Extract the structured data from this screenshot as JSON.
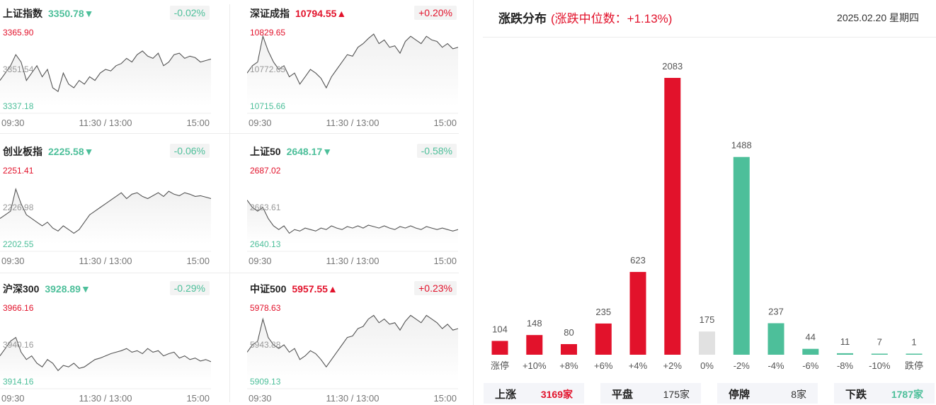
{
  "panels": [
    {
      "name": "上证指数",
      "value": "3350.78",
      "arrow": "▼",
      "change": "-0.02%",
      "dir": "down",
      "max": "3365.90",
      "mid": "3351.54",
      "min": "3337.18",
      "series": [
        0.35,
        0.45,
        0.55,
        0.7,
        0.6,
        0.35,
        0.45,
        0.55,
        0.4,
        0.5,
        0.25,
        0.2,
        0.45,
        0.3,
        0.25,
        0.35,
        0.3,
        0.4,
        0.35,
        0.45,
        0.5,
        0.48,
        0.55,
        0.58,
        0.65,
        0.6,
        0.7,
        0.75,
        0.68,
        0.65,
        0.72,
        0.55,
        0.6,
        0.7,
        0.72,
        0.65,
        0.68,
        0.66,
        0.6,
        0.62,
        0.64
      ]
    },
    {
      "name": "深证成指",
      "value": "10794.55",
      "arrow": "▲",
      "change": "+0.20%",
      "dir": "up",
      "max": "10829.65",
      "mid": "10772.65",
      "min": "10715.66",
      "series": [
        0.45,
        0.55,
        0.6,
        0.95,
        0.75,
        0.6,
        0.5,
        0.55,
        0.4,
        0.45,
        0.3,
        0.4,
        0.5,
        0.45,
        0.38,
        0.25,
        0.4,
        0.5,
        0.6,
        0.7,
        0.68,
        0.8,
        0.85,
        0.92,
        0.98,
        0.85,
        0.9,
        0.8,
        0.82,
        0.72,
        0.88,
        0.95,
        0.9,
        0.85,
        0.95,
        0.9,
        0.88,
        0.8,
        0.85,
        0.78,
        0.8
      ]
    },
    {
      "name": "创业板指",
      "value": "2225.58",
      "arrow": "▼",
      "change": "-0.06%",
      "dir": "down",
      "max": "2251.41",
      "mid": "2226.98",
      "min": "2202.55",
      "series": [
        0.35,
        0.4,
        0.45,
        0.75,
        0.55,
        0.4,
        0.35,
        0.3,
        0.25,
        0.3,
        0.22,
        0.18,
        0.25,
        0.2,
        0.15,
        0.2,
        0.3,
        0.4,
        0.45,
        0.5,
        0.55,
        0.6,
        0.65,
        0.7,
        0.62,
        0.68,
        0.7,
        0.65,
        0.62,
        0.66,
        0.7,
        0.65,
        0.72,
        0.68,
        0.66,
        0.7,
        0.68,
        0.65,
        0.66,
        0.64,
        0.62
      ]
    },
    {
      "name": "上证50",
      "value": "2648.17",
      "arrow": "▼",
      "change": "-0.58%",
      "dir": "down",
      "max": "2687.02",
      "mid": "2663.61",
      "min": "2640.13",
      "series": [
        0.6,
        0.5,
        0.45,
        0.5,
        0.35,
        0.25,
        0.2,
        0.25,
        0.15,
        0.2,
        0.18,
        0.22,
        0.2,
        0.18,
        0.22,
        0.2,
        0.25,
        0.22,
        0.2,
        0.24,
        0.22,
        0.25,
        0.22,
        0.26,
        0.24,
        0.22,
        0.25,
        0.22,
        0.2,
        0.24,
        0.22,
        0.25,
        0.22,
        0.2,
        0.24,
        0.22,
        0.2,
        0.22,
        0.2,
        0.18,
        0.2
      ]
    },
    {
      "name": "沪深300",
      "value": "3928.89",
      "arrow": "▼",
      "change": "-0.29%",
      "dir": "down",
      "max": "3966.16",
      "mid": "3940.16",
      "min": "3914.16",
      "series": [
        0.35,
        0.45,
        0.55,
        0.6,
        0.4,
        0.3,
        0.35,
        0.25,
        0.2,
        0.3,
        0.25,
        0.15,
        0.22,
        0.2,
        0.25,
        0.18,
        0.2,
        0.25,
        0.3,
        0.32,
        0.35,
        0.38,
        0.4,
        0.42,
        0.45,
        0.4,
        0.42,
        0.38,
        0.45,
        0.4,
        0.42,
        0.35,
        0.38,
        0.4,
        0.32,
        0.35,
        0.3,
        0.32,
        0.28,
        0.3,
        0.27
      ]
    },
    {
      "name": "中证500",
      "value": "5957.55",
      "arrow": "▲",
      "change": "+0.23%",
      "dir": "up",
      "max": "5978.63",
      "mid": "5943.88",
      "min": "5909.13",
      "series": [
        0.4,
        0.5,
        0.55,
        0.85,
        0.6,
        0.5,
        0.45,
        0.5,
        0.4,
        0.45,
        0.3,
        0.35,
        0.42,
        0.38,
        0.3,
        0.2,
        0.3,
        0.4,
        0.5,
        0.6,
        0.62,
        0.72,
        0.75,
        0.85,
        0.9,
        0.8,
        0.85,
        0.78,
        0.8,
        0.7,
        0.82,
        0.9,
        0.85,
        0.8,
        0.9,
        0.85,
        0.8,
        0.72,
        0.78,
        0.7,
        0.72
      ]
    }
  ],
  "time_labels": {
    "start": "09:30",
    "mid": "11:30 / 13:00",
    "end": "15:00"
  },
  "distribution": {
    "title": "涨跌分布",
    "subtitle": "(涨跌中位数：+1.13%)",
    "date": "2025.02.20 星期四",
    "colors": {
      "up": "#e2122b",
      "flat": "#e1e1e1",
      "down": "#4dbf9a"
    },
    "summary": [
      {
        "label": "上涨",
        "value": "3169家",
        "dir": "up"
      },
      {
        "label": "平盘",
        "value": "175家",
        "dir": "flat"
      },
      {
        "label": "停牌",
        "value": "8家",
        "dir": "flat"
      },
      {
        "label": "下跌",
        "value": "1787家",
        "dir": "down"
      }
    ]
  },
  "chart_data": {
    "type": "bar",
    "categories": [
      "涨停",
      "+10%",
      "+8%",
      "+6%",
      "+4%",
      "+2%",
      "0%",
      "-2%",
      "-4%",
      "-6%",
      "-8%",
      "-10%",
      "跌停"
    ],
    "values": [
      104,
      148,
      80,
      235,
      623,
      2083,
      175,
      1488,
      237,
      44,
      11,
      7,
      1
    ],
    "colors": [
      "up",
      "up",
      "up",
      "up",
      "up",
      "up",
      "flat",
      "down",
      "down",
      "down",
      "down",
      "down",
      "down"
    ]
  }
}
